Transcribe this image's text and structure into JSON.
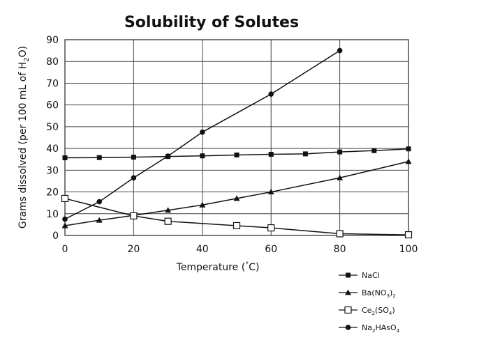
{
  "chart_data": {
    "type": "line",
    "title": "Solubility of Solutes",
    "xlabel": "Temperature (°C)",
    "xlabel_parts": [
      "Temperature (",
      "°",
      "C)"
    ],
    "ylabel": "Grams dissolved (per 100 mL of H2O)",
    "ylabel_parts": [
      "Grams dissolved (per 100 mL of H",
      "2",
      "O)"
    ],
    "xlim": [
      0,
      100
    ],
    "ylim": [
      0,
      90
    ],
    "xticks": [
      0,
      20,
      40,
      60,
      80,
      100
    ],
    "yticks": [
      0,
      10,
      20,
      30,
      40,
      50,
      60,
      70,
      80,
      90
    ],
    "grid": true,
    "legend_position": "bottom-right",
    "series": [
      {
        "name": "NaCl",
        "name_parts": [
          [
            "NaCl",
            false
          ]
        ],
        "marker": "filled-square",
        "color": "#111111",
        "x": [
          0,
          10,
          20,
          30,
          40,
          50,
          60,
          70,
          80,
          90,
          100
        ],
        "y": [
          35.7,
          35.8,
          36.0,
          36.3,
          36.6,
          37.0,
          37.3,
          37.5,
          38.4,
          39.0,
          39.8
        ]
      },
      {
        "name": "Ba(NO3)2",
        "name_parts": [
          [
            "Ba(NO",
            false
          ],
          [
            "3",
            true
          ],
          [
            ")",
            false
          ],
          [
            "2",
            true
          ]
        ],
        "marker": "filled-triangle",
        "color": "#111111",
        "x": [
          0,
          10,
          20,
          30,
          40,
          50,
          60,
          80,
          100
        ],
        "y": [
          4.5,
          7.0,
          9.2,
          11.6,
          14.0,
          17.0,
          20.0,
          26.5,
          34.0
        ]
      },
      {
        "name": "Ce2(SO4)",
        "name_parts": [
          [
            "Ce",
            false
          ],
          [
            "2",
            true
          ],
          [
            "(SO",
            false
          ],
          [
            "4",
            true
          ],
          [
            ")",
            false
          ]
        ],
        "marker": "open-square",
        "color": "#111111",
        "x": [
          0,
          20,
          30,
          50,
          60,
          80,
          100
        ],
        "y": [
          17.0,
          9.0,
          6.5,
          4.5,
          3.5,
          0.8,
          0.3
        ]
      },
      {
        "name": "Na2HAsO4",
        "name_parts": [
          [
            "Na",
            false
          ],
          [
            "2",
            true
          ],
          [
            "HAsO",
            false
          ],
          [
            "4",
            true
          ]
        ],
        "marker": "filled-circle",
        "color": "#111111",
        "x": [
          0,
          10,
          20,
          30,
          40,
          60,
          80
        ],
        "y": [
          7.5,
          15.5,
          26.5,
          36.5,
          47.5,
          65.0,
          85.0
        ]
      }
    ]
  }
}
